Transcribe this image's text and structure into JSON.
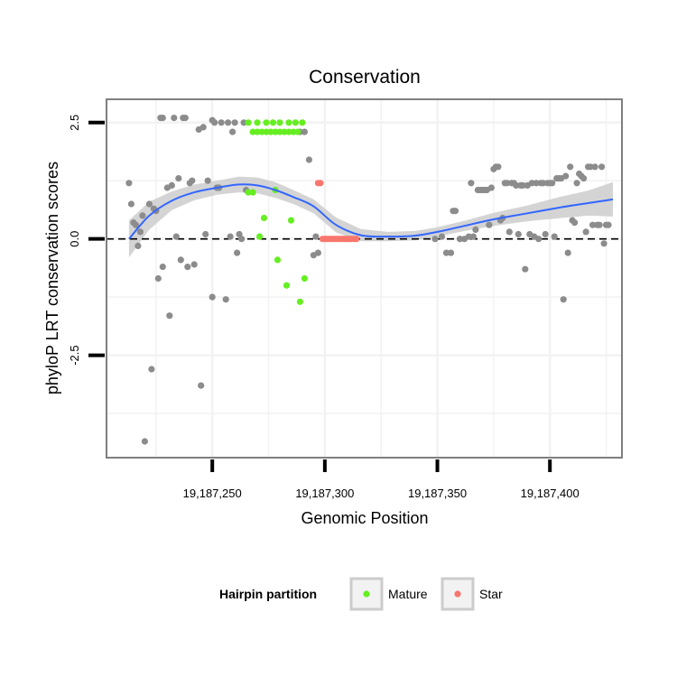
{
  "chart_data": {
    "type": "scatter",
    "title": "Conservation",
    "xlabel": "Genomic Position",
    "ylabel": "phyloP LRT conservation scores",
    "xlim": [
      19187203,
      19187432
    ],
    "ylim": [
      -4.7,
      3.0
    ],
    "x_ticks": [
      19187250,
      19187300,
      19187350,
      19187400
    ],
    "x_tick_labels": [
      "19,187,250",
      "19,187,300",
      "19,187,350",
      "19,187,400"
    ],
    "y_ticks": [
      -2.5,
      0.0,
      2.5
    ],
    "y_tick_labels": [
      "-2.5",
      "0.0",
      "2.5"
    ],
    "y_minor_grid": [
      -3.75,
      -1.25,
      1.25
    ],
    "x_minor_grid": [
      19187225,
      19187275,
      19187325,
      19187375,
      19187425
    ],
    "reference_line": {
      "y": 0,
      "style": "dashed"
    },
    "grid": true,
    "legend": {
      "position": "bottom",
      "title": "Hairpin partition",
      "entries": [
        {
          "label": "Mature",
          "color": "#66ee22"
        },
        {
          "label": "Star",
          "color": "#f8766d"
        }
      ]
    },
    "colors": {
      "other": "#8c8c8c",
      "mature": "#66ee22",
      "star": "#f8766d",
      "smooth": "#3366ff",
      "ribbon": "#cccccc"
    },
    "series": [
      {
        "name": "Other",
        "points": [
          [
            19187213,
            1.2
          ],
          [
            19187214,
            0.75
          ],
          [
            19187215,
            0.35
          ],
          [
            19187216,
            0.3
          ],
          [
            19187217,
            -0.15
          ],
          [
            19187218,
            0.15
          ],
          [
            19187219,
            0.5
          ],
          [
            19187220,
            -4.35
          ],
          [
            19187222,
            0.75
          ],
          [
            19187223,
            -2.8
          ],
          [
            19187224,
            0.65
          ],
          [
            19187225,
            0.6
          ],
          [
            19187226,
            -0.85
          ],
          [
            19187227,
            2.6
          ],
          [
            19187228,
            2.6
          ],
          [
            19187228,
            -0.6
          ],
          [
            19187230,
            1.1
          ],
          [
            19187231,
            -1.65
          ],
          [
            19187232,
            1.15
          ],
          [
            19187233,
            2.6
          ],
          [
            19187234,
            0.05
          ],
          [
            19187235,
            1.3
          ],
          [
            19187236,
            -0.45
          ],
          [
            19187237,
            2.6
          ],
          [
            19187238,
            2.6
          ],
          [
            19187239,
            -0.6
          ],
          [
            19187240,
            1.2
          ],
          [
            19187241,
            1.25
          ],
          [
            19187242,
            -0.55
          ],
          [
            19187244,
            2.35
          ],
          [
            19187245,
            -3.15
          ],
          [
            19187246,
            2.4
          ],
          [
            19187247,
            0.1
          ],
          [
            19187248,
            1.25
          ],
          [
            19187250,
            -1.25
          ],
          [
            19187250,
            2.55
          ],
          [
            19187251,
            2.5
          ],
          [
            19187252,
            1.1
          ],
          [
            19187253,
            1.1
          ],
          [
            19187254,
            2.5
          ],
          [
            19187256,
            -1.3
          ],
          [
            19187257,
            2.5
          ],
          [
            19187258,
            0.05
          ],
          [
            19187259,
            2.3
          ],
          [
            19187260,
            2.5
          ],
          [
            19187261,
            -0.3
          ],
          [
            19187262,
            0.1
          ],
          [
            19187263,
            0.0
          ],
          [
            19187264,
            2.5
          ],
          [
            19187265,
            1.05
          ],
          [
            19187289,
            2.3
          ],
          [
            19187291,
            2.3
          ],
          [
            19187293,
            1.7
          ],
          [
            19187295,
            -0.35
          ],
          [
            19187296,
            0.05
          ],
          [
            19187297,
            -0.3
          ],
          [
            19187349,
            0.0
          ],
          [
            19187352,
            0.05
          ],
          [
            19187354,
            -0.3
          ],
          [
            19187356,
            -0.3
          ],
          [
            19187357,
            0.6
          ],
          [
            19187358,
            0.6
          ],
          [
            19187360,
            0.0
          ],
          [
            19187362,
            0.0
          ],
          [
            19187364,
            0.05
          ],
          [
            19187365,
            1.2
          ],
          [
            19187366,
            0.05
          ],
          [
            19187367,
            0.2
          ],
          [
            19187368,
            1.05
          ],
          [
            19187369,
            1.05
          ],
          [
            19187370,
            1.05
          ],
          [
            19187371,
            1.05
          ],
          [
            19187372,
            1.05
          ],
          [
            19187373,
            0.3
          ],
          [
            19187374,
            1.1
          ],
          [
            19187375,
            1.5
          ],
          [
            19187376,
            1.55
          ],
          [
            19187377,
            1.55
          ],
          [
            19187378,
            0.4
          ],
          [
            19187379,
            0.45
          ],
          [
            19187380,
            1.2
          ],
          [
            19187381,
            1.2
          ],
          [
            19187382,
            0.15
          ],
          [
            19187383,
            1.2
          ],
          [
            19187384,
            1.2
          ],
          [
            19187385,
            1.15
          ],
          [
            19187386,
            0.1
          ],
          [
            19187387,
            1.15
          ],
          [
            19187388,
            1.15
          ],
          [
            19187389,
            -0.65
          ],
          [
            19187390,
            1.15
          ],
          [
            19187391,
            0.1
          ],
          [
            19187392,
            1.2
          ],
          [
            19187393,
            0.05
          ],
          [
            19187394,
            1.2
          ],
          [
            19187395,
            0.0
          ],
          [
            19187396,
            1.2
          ],
          [
            19187397,
            1.2
          ],
          [
            19187398,
            0.1
          ],
          [
            19187399,
            1.2
          ],
          [
            19187400,
            1.2
          ],
          [
            19187401,
            1.2
          ],
          [
            19187402,
            0.05
          ],
          [
            19187403,
            1.3
          ],
          [
            19187404,
            1.3
          ],
          [
            19187405,
            1.3
          ],
          [
            19187406,
            -1.3
          ],
          [
            19187407,
            1.35
          ],
          [
            19187408,
            -0.3
          ],
          [
            19187409,
            1.55
          ],
          [
            19187410,
            0.4
          ],
          [
            19187411,
            0.35
          ],
          [
            19187412,
            1.2
          ],
          [
            19187413,
            1.4
          ],
          [
            19187414,
            1.35
          ],
          [
            19187415,
            1.3
          ],
          [
            19187416,
            0.15
          ],
          [
            19187417,
            1.55
          ],
          [
            19187418,
            1.55
          ],
          [
            19187419,
            0.3
          ],
          [
            19187420,
            1.55
          ],
          [
            19187421,
            0.3
          ],
          [
            19187422,
            0.3
          ],
          [
            19187423,
            1.55
          ],
          [
            19187424,
            -0.1
          ],
          [
            19187425,
            0.3
          ],
          [
            19187426,
            0.3
          ]
        ]
      },
      {
        "name": "Mature",
        "points": [
          [
            19187266,
            2.5
          ],
          [
            19187266,
            1.0
          ],
          [
            19187268,
            2.3
          ],
          [
            19187268,
            1.0
          ],
          [
            19187270,
            2.5
          ],
          [
            19187270,
            2.3
          ],
          [
            19187271,
            0.05
          ],
          [
            19187272,
            2.3
          ],
          [
            19187273,
            0.45
          ],
          [
            19187274,
            2.5
          ],
          [
            19187274,
            2.3
          ],
          [
            19187276,
            2.3
          ],
          [
            19187277,
            2.5
          ],
          [
            19187278,
            2.3
          ],
          [
            19187278,
            1.05
          ],
          [
            19187279,
            -0.45
          ],
          [
            19187280,
            2.5
          ],
          [
            19187280,
            2.3
          ],
          [
            19187282,
            2.3
          ],
          [
            19187283,
            -1.0
          ],
          [
            19187284,
            2.5
          ],
          [
            19187284,
            2.3
          ],
          [
            19187285,
            0.4
          ],
          [
            19187286,
            2.3
          ],
          [
            19187287,
            2.5
          ],
          [
            19187288,
            2.3
          ],
          [
            19187289,
            -1.35
          ],
          [
            19187290,
            2.5
          ],
          [
            19187291,
            -0.85
          ]
        ]
      },
      {
        "name": "Star",
        "points": [
          [
            19187297,
            1.2
          ],
          [
            19187298,
            1.2
          ],
          [
            19187299,
            0.0
          ],
          [
            19187300,
            0.0
          ],
          [
            19187301,
            0.0
          ],
          [
            19187302,
            0.0
          ],
          [
            19187303,
            0.0
          ],
          [
            19187304,
            0.0
          ],
          [
            19187305,
            0.0
          ],
          [
            19187306,
            0.0
          ],
          [
            19187307,
            0.0
          ],
          [
            19187308,
            0.0
          ],
          [
            19187309,
            0.0
          ],
          [
            19187310,
            0.0
          ],
          [
            19187311,
            0.0
          ],
          [
            19187312,
            0.0
          ],
          [
            19187313,
            0.0
          ],
          [
            19187314,
            0.0
          ]
        ]
      }
    ],
    "smooth": {
      "x": [
        19187213,
        19187222,
        19187232,
        19187242,
        19187252,
        19187262,
        19187270,
        19187278,
        19187286,
        19187295,
        19187305,
        19187316,
        19187328,
        19187340,
        19187350,
        19187362,
        19187375,
        19187390,
        19187405,
        19187417,
        19187428
      ],
      "y": [
        0.0,
        0.5,
        0.82,
        1.0,
        1.1,
        1.17,
        1.15,
        1.05,
        0.9,
        0.7,
        0.3,
        0.08,
        0.05,
        0.07,
        0.15,
        0.28,
        0.42,
        0.55,
        0.68,
        0.77,
        0.85
      ],
      "lower": [
        -0.4,
        0.2,
        0.62,
        0.83,
        0.95,
        1.0,
        0.98,
        0.88,
        0.75,
        0.55,
        0.14,
        -0.05,
        -0.05,
        -0.03,
        0.05,
        0.17,
        0.28,
        0.38,
        0.45,
        0.5,
        0.48
      ],
      "upper": [
        0.4,
        0.8,
        1.02,
        1.17,
        1.25,
        1.34,
        1.32,
        1.22,
        1.05,
        0.85,
        0.46,
        0.21,
        0.15,
        0.17,
        0.25,
        0.39,
        0.56,
        0.72,
        0.91,
        1.04,
        1.22
      ]
    }
  }
}
